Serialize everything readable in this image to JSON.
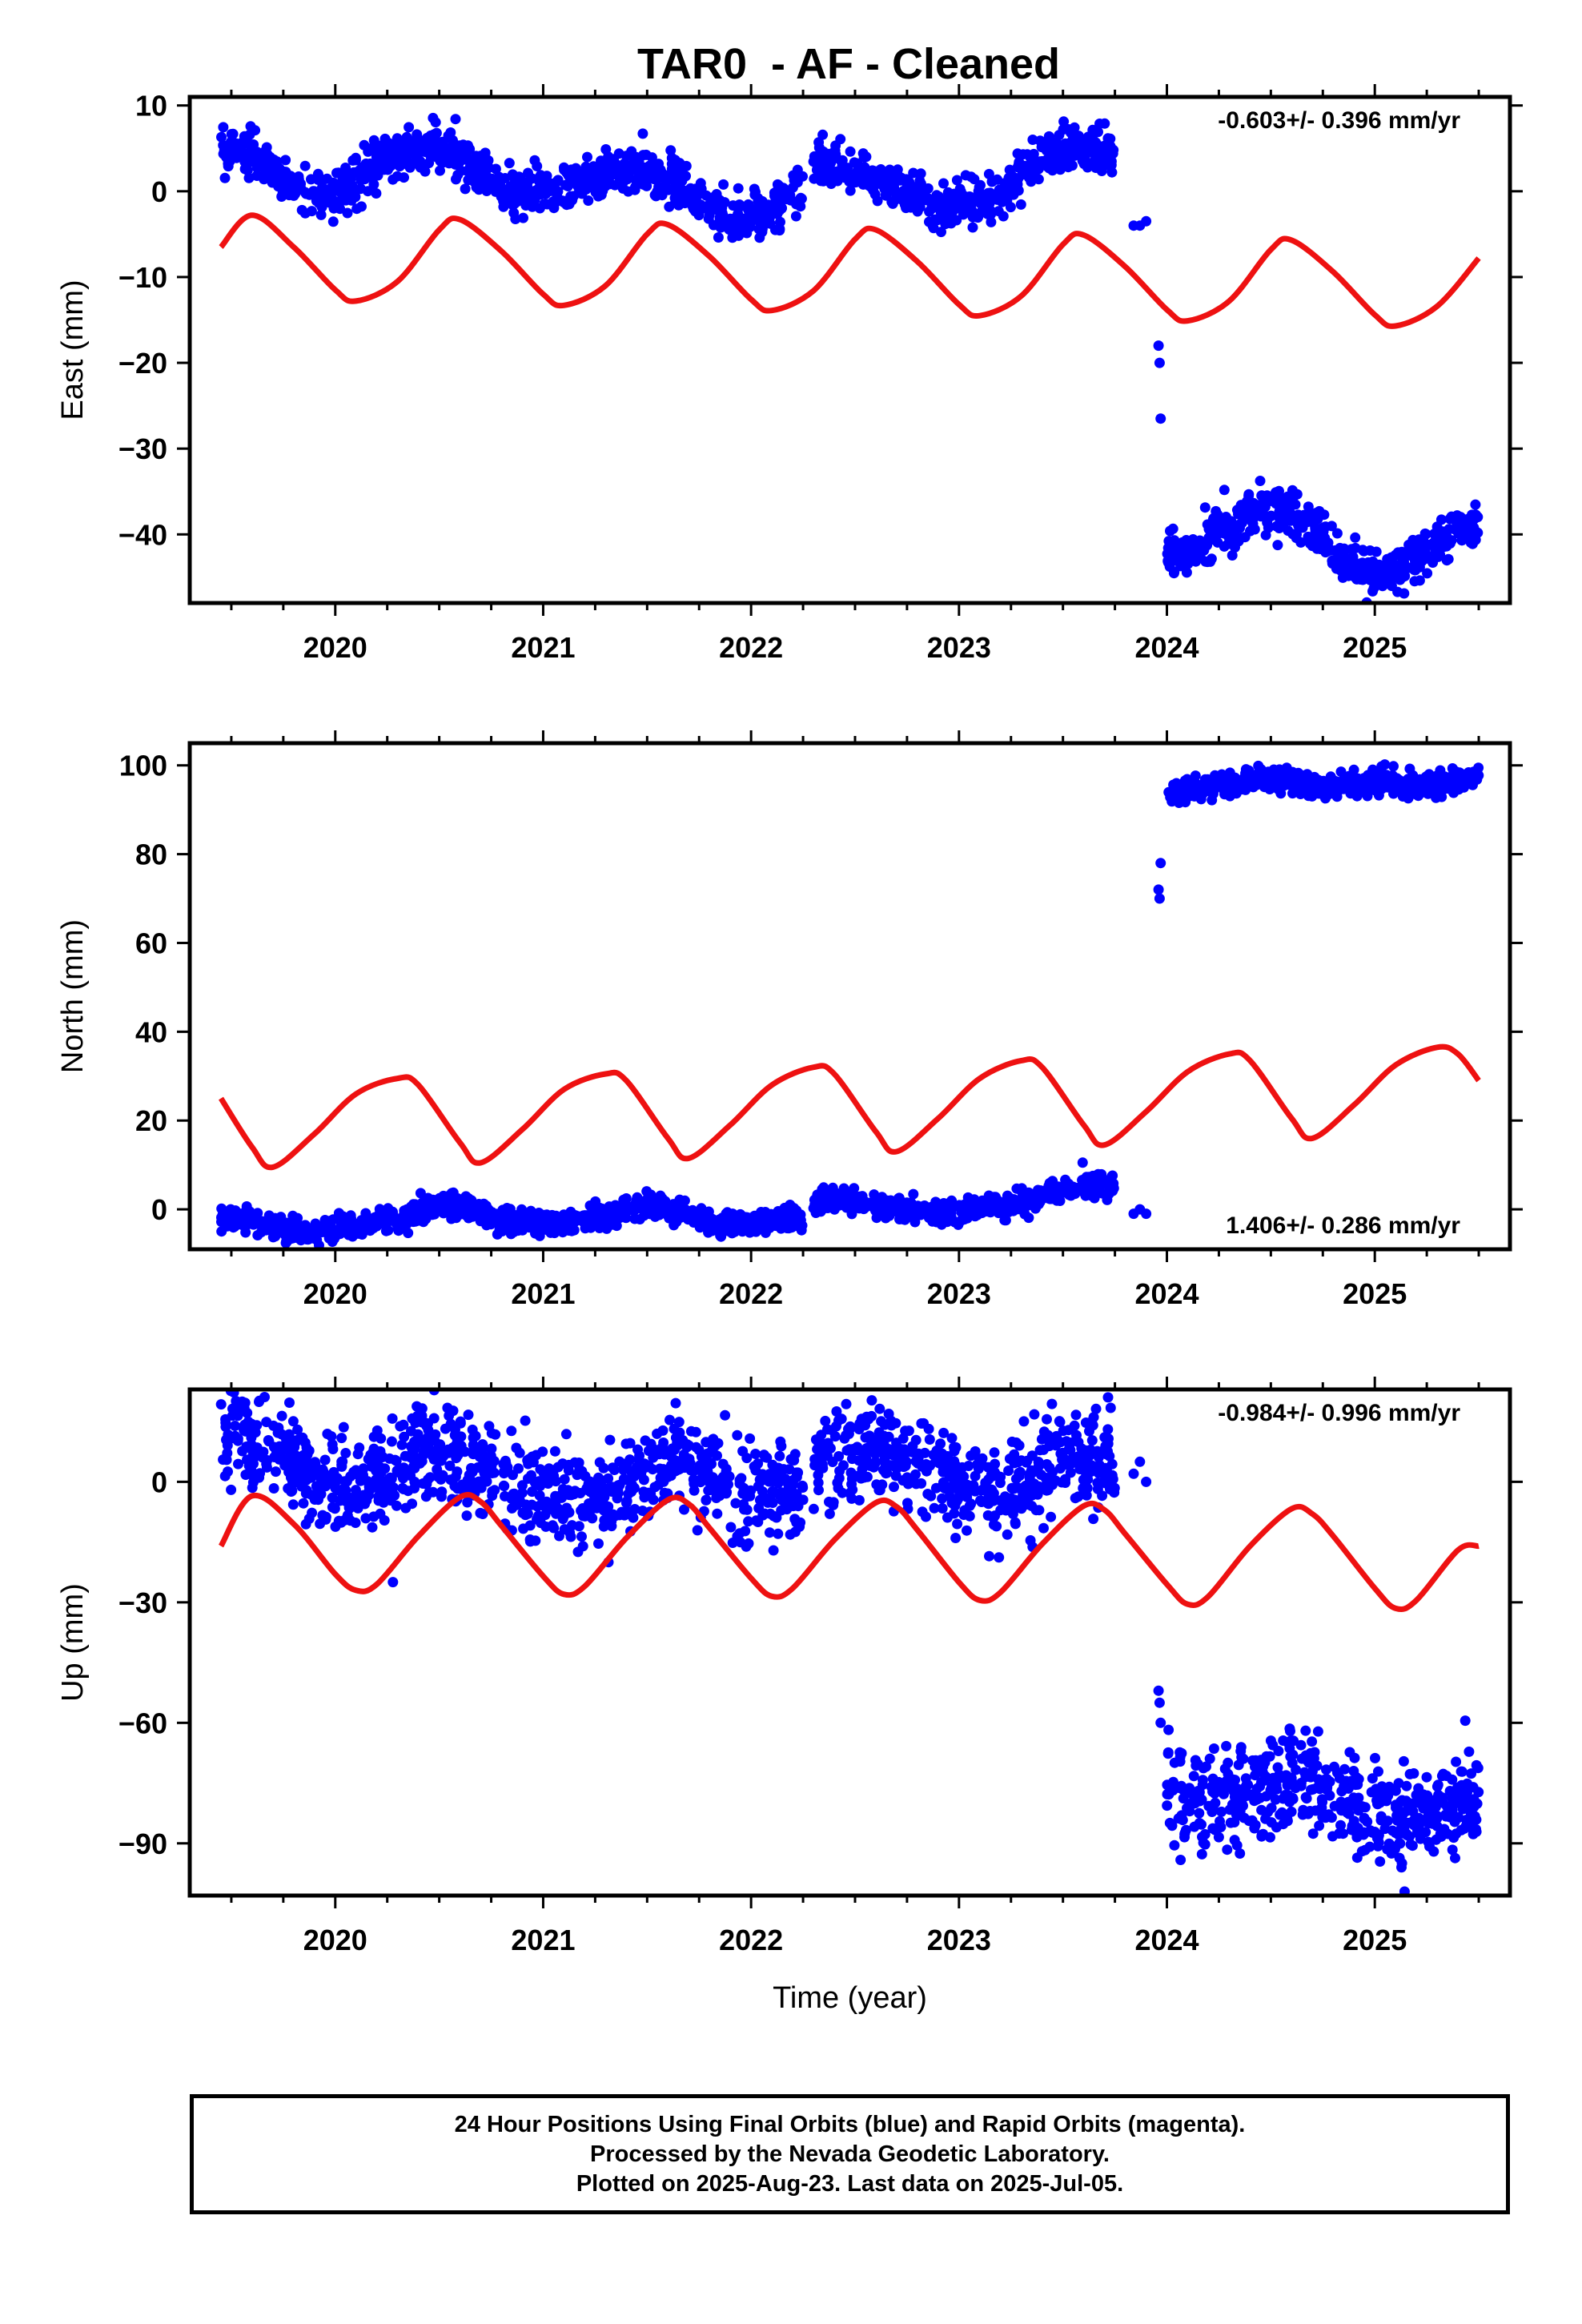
{
  "title": "TAR0  - AF - Cleaned",
  "footer": {
    "line1": "24 Hour Positions Using Final Orbits (blue) and Rapid Orbits (magenta).",
    "line2": "Processed by the Nevada Geodetic Laboratory.",
    "line3": "Plotted on 2025-Aug-23. Last data on 2025-Jul-05."
  },
  "colors": {
    "data_points": "#0000ff",
    "model_curve": "#ee1111",
    "frame": "#000000"
  },
  "chart_data": [
    {
      "type": "scatter",
      "ylabel": "East (mm)",
      "xlabel": "",
      "rate_text": "-0.603+/- 0.396 mm/yr",
      "rate_position": "top-right",
      "xlim": [
        2019.3,
        2025.65
      ],
      "ylim": [
        -48,
        11
      ],
      "x_ticks": [
        "2020",
        "2021",
        "2022",
        "2023",
        "2024",
        "2025"
      ],
      "y_ticks": [
        10,
        0,
        -10,
        -20,
        -30,
        -40
      ],
      "y_ticklabels": [
        "10",
        "0",
        "−10",
        "−20",
        "−30",
        "−40"
      ],
      "grid": false,
      "series": [
        {
          "kind": "points",
          "segments": [
            {
              "x": [
                2019.45,
                2019.55,
                2019.65,
                2019.75,
                2019.85,
                2019.95,
                2020.05,
                2020.15,
                2020.25,
                2020.35,
                2020.45,
                2020.55,
                2020.65,
                2020.75,
                2020.85,
                2020.95,
                2021.05,
                2021.15,
                2021.25,
                2021.35,
                2021.45,
                2021.55,
                2021.65,
                2021.75,
                2021.85,
                2021.95,
                2022.05,
                2022.15,
                2022.25
              ],
              "y": [
                5.0,
                4.5,
                3.5,
                1.5,
                0.0,
                -0.5,
                0.5,
                2.0,
                3.5,
                4.5,
                5.0,
                4.5,
                3.0,
                1.0,
                0.0,
                0.0,
                -0.5,
                0.5,
                1.5,
                2.0,
                3.0,
                2.5,
                1.0,
                -1.5,
                -3.0,
                -3.5,
                -3.0,
                -1.5,
                0.0
              ]
            },
            {
              "x": [
                2022.3,
                2022.4,
                2022.5,
                2022.6,
                2022.7,
                2022.8,
                2022.9,
                2023.0,
                2023.1,
                2023.2,
                2023.3,
                2023.4,
                2023.5,
                2023.6,
                2023.7,
                2023.75
              ],
              "y": [
                2.5,
                3.0,
                2.5,
                1.5,
                0.5,
                -1.0,
                -2.0,
                -1.5,
                -1.0,
                0.0,
                2.0,
                4.0,
                5.0,
                5.0,
                4.5,
                4.0
              ]
            },
            {
              "x": [
                2023.84,
                2023.87,
                2023.9
              ],
              "y": [
                -4.0,
                -4.0,
                -3.5
              ]
            },
            {
              "x": [
                2023.96,
                2023.965,
                2023.97
              ],
              "y": [
                -18.0,
                -20.0,
                -26.5
              ]
            },
            {
              "x": [
                2024.0,
                2024.1,
                2024.2,
                2024.3,
                2024.4,
                2024.5,
                2024.6,
                2024.7,
                2024.8,
                2024.9,
                2025.0,
                2025.1,
                2025.2,
                2025.3,
                2025.4,
                2025.5
              ],
              "y": [
                -42.0,
                -42.0,
                -41.0,
                -39.0,
                -37.5,
                -36.5,
                -37.5,
                -39.0,
                -42.0,
                -44.0,
                -44.5,
                -44.0,
                -43.0,
                -41.0,
                -39.5,
                -39.0
              ]
            }
          ]
        },
        {
          "kind": "model",
          "x": [
            2019.45,
            2019.6,
            2019.8,
            2020.0,
            2020.1,
            2020.3,
            2020.5,
            2020.6,
            2020.8,
            2021.0,
            2021.1,
            2021.3,
            2021.5,
            2021.6,
            2021.8,
            2022.0,
            2022.1,
            2022.3,
            2022.5,
            2022.6,
            2022.8,
            2023.0,
            2023.1,
            2023.3,
            2023.5,
            2023.6,
            2023.8,
            2024.0,
            2024.1,
            2024.3,
            2024.5,
            2024.6,
            2024.8,
            2025.0,
            2025.1,
            2025.3,
            2025.5
          ],
          "y": [
            -6.5,
            -2.8,
            -6.5,
            -11.5,
            -12.8,
            -10.5,
            -4.5,
            -3.3,
            -7.0,
            -12.0,
            -13.3,
            -11.0,
            -5.0,
            -3.9,
            -7.6,
            -12.6,
            -13.9,
            -11.6,
            -5.6,
            -4.5,
            -8.2,
            -13.2,
            -14.5,
            -12.2,
            -6.2,
            -5.1,
            -8.8,
            -13.8,
            -15.1,
            -12.8,
            -6.8,
            -5.7,
            -9.4,
            -14.4,
            -15.7,
            -13.4,
            -7.8
          ]
        }
      ]
    },
    {
      "type": "scatter",
      "ylabel": "North (mm)",
      "xlabel": "",
      "rate_text": "1.406+/- 0.286 mm/yr",
      "rate_position": "bottom-right",
      "xlim": [
        2019.3,
        2025.65
      ],
      "ylim": [
        -9,
        105
      ],
      "x_ticks": [
        "2020",
        "2021",
        "2022",
        "2023",
        "2024",
        "2025"
      ],
      "y_ticks": [
        100,
        80,
        60,
        40,
        20,
        0
      ],
      "y_ticklabels": [
        "100",
        "80",
        "60",
        "40",
        "20",
        "0"
      ],
      "grid": false,
      "series": [
        {
          "kind": "points",
          "segments": [
            {
              "x": [
                2019.45,
                2019.6,
                2019.75,
                2019.9,
                2020.05,
                2020.2,
                2020.35,
                2020.5,
                2020.65,
                2020.8,
                2020.95,
                2021.1,
                2021.25,
                2021.4,
                2021.55,
                2021.7,
                2021.85,
                2022.0,
                2022.15,
                2022.25
              ],
              "y": [
                -2.0,
                -3.0,
                -5.0,
                -5.0,
                -4.0,
                -3.0,
                -1.5,
                1.0,
                0.0,
                -3.0,
                -3.5,
                -3.0,
                -2.0,
                0.0,
                1.0,
                -1.0,
                -3.0,
                -3.0,
                -2.0,
                -2.0
              ]
            },
            {
              "x": [
                2022.3,
                2022.45,
                2022.6,
                2022.75,
                2022.9,
                2023.05,
                2023.2,
                2023.35,
                2023.5,
                2023.6,
                2023.75
              ],
              "y": [
                1.0,
                2.0,
                1.0,
                0.0,
                -1.0,
                0.0,
                1.0,
                2.0,
                4.0,
                5.0,
                6.0
              ]
            },
            {
              "x": [
                2023.84,
                2023.87,
                2023.9
              ],
              "y": [
                -1.0,
                0.0,
                -1.0
              ]
            },
            {
              "x": [
                2023.96,
                2023.965,
                2023.97
              ],
              "y": [
                72.0,
                70.0,
                78.0
              ]
            },
            {
              "x": [
                2024.0,
                2024.15,
                2024.3,
                2024.45,
                2024.6,
                2024.75,
                2024.9,
                2025.05,
                2025.2,
                2025.35,
                2025.5
              ],
              "y": [
                93.0,
                95.0,
                96.0,
                97.0,
                97.0,
                95.0,
                96.0,
                97.0,
                95.0,
                96.0,
                97.0
              ]
            }
          ]
        },
        {
          "kind": "model",
          "x": [
            2019.45,
            2019.6,
            2019.7,
            2019.9,
            2020.1,
            2020.3,
            2020.4,
            2020.6,
            2020.7,
            2020.9,
            2021.1,
            2021.3,
            2021.4,
            2021.6,
            2021.7,
            2021.9,
            2022.1,
            2022.3,
            2022.4,
            2022.6,
            2022.7,
            2022.9,
            2023.1,
            2023.3,
            2023.4,
            2023.6,
            2023.7,
            2023.9,
            2024.1,
            2024.3,
            2024.4,
            2024.6,
            2024.7,
            2024.9,
            2025.1,
            2025.3,
            2025.4,
            2025.5
          ],
          "y": [
            25.0,
            14.0,
            9.5,
            17.0,
            26.0,
            29.5,
            28.0,
            15.0,
            10.5,
            18.0,
            27.0,
            30.5,
            29.0,
            16.0,
            11.5,
            19.0,
            28.0,
            32.0,
            30.5,
            17.5,
            13.0,
            20.5,
            29.5,
            33.5,
            32.0,
            19.0,
            14.5,
            22.0,
            31.0,
            35.0,
            33.5,
            20.5,
            16.0,
            23.5,
            32.5,
            36.5,
            35.0,
            29.0
          ]
        }
      ]
    },
    {
      "type": "scatter",
      "ylabel": "Up (mm)",
      "xlabel": "Time (year)",
      "rate_text": "-0.984+/- 0.996 mm/yr",
      "rate_position": "top-right",
      "xlim": [
        2019.3,
        2025.65
      ],
      "ylim": [
        -103,
        23
      ],
      "x_ticks": [
        "2020",
        "2021",
        "2022",
        "2023",
        "2024",
        "2025"
      ],
      "y_ticks": [
        0,
        -30,
        -60,
        -90
      ],
      "y_ticklabels": [
        "0",
        "−30",
        "−60",
        "−90"
      ],
      "grid": false,
      "series": [
        {
          "kind": "points",
          "segments": [
            {
              "x": [
                2019.45,
                2019.55,
                2019.65,
                2019.75,
                2019.85,
                2019.95,
                2020.05,
                2020.15,
                2020.25,
                2020.35,
                2020.45,
                2020.55,
                2020.65,
                2020.75,
                2020.85,
                2020.95,
                2021.05,
                2021.15,
                2021.25,
                2021.35,
                2021.45,
                2021.55,
                2021.65,
                2021.75,
                2021.85,
                2021.95,
                2022.05,
                2022.15,
                2022.25
              ],
              "y": [
                10.0,
                12.0,
                9.0,
                7.0,
                3.0,
                0.0,
                -2.0,
                0.0,
                3.0,
                6.0,
                8.0,
                7.0,
                5.0,
                2.0,
                0.0,
                -2.0,
                -3.0,
                -5.0,
                -6.0,
                -3.0,
                0.0,
                4.0,
                6.0,
                3.0,
                0.0,
                -2.0,
                -3.0,
                -3.0,
                -2.0
              ]
            },
            {
              "x": [
                2022.3,
                2022.4,
                2022.5,
                2022.6,
                2022.7,
                2022.8,
                2022.9,
                2023.0,
                2023.1,
                2023.2,
                2023.3,
                2023.4,
                2023.5,
                2023.6,
                2023.7,
                2023.75
              ],
              "y": [
                5.0,
                7.0,
                8.0,
                8.0,
                6.0,
                4.0,
                2.0,
                0.0,
                -2.0,
                -3.0,
                0.0,
                3.0,
                6.0,
                7.0,
                5.0,
                4.0
              ]
            },
            {
              "x": [
                2023.84,
                2023.87,
                2023.9
              ],
              "y": [
                2.0,
                5.0,
                0.0
              ]
            },
            {
              "x": [
                2023.96,
                2023.965,
                2023.97
              ],
              "y": [
                -52.0,
                -55.0,
                -60.0
              ]
            },
            {
              "x": [
                2024.0,
                2024.1,
                2024.2,
                2024.3,
                2024.4,
                2024.5,
                2024.6,
                2024.7,
                2024.8,
                2024.9,
                2025.0,
                2025.1,
                2025.2,
                2025.3,
                2025.4,
                2025.5
              ],
              "y": [
                -76.0,
                -80.0,
                -81.0,
                -80.0,
                -78.0,
                -75.0,
                -72.0,
                -74.0,
                -78.0,
                -81.0,
                -82.0,
                -84.0,
                -83.0,
                -82.0,
                -80.0,
                -78.0
              ]
            }
          ]
        },
        {
          "kind": "model",
          "x": [
            2019.45,
            2019.6,
            2019.8,
            2020.0,
            2020.1,
            2020.2,
            2020.4,
            2020.6,
            2020.7,
            2020.8,
            2021.0,
            2021.1,
            2021.2,
            2021.4,
            2021.6,
            2021.7,
            2021.8,
            2022.0,
            2022.1,
            2022.2,
            2022.4,
            2022.6,
            2022.7,
            2022.8,
            2023.0,
            2023.1,
            2023.2,
            2023.4,
            2023.6,
            2023.7,
            2023.8,
            2024.0,
            2024.1,
            2024.2,
            2024.4,
            2024.6,
            2024.7,
            2024.8,
            2025.0,
            2025.1,
            2025.2,
            2025.4,
            2025.5
          ],
          "y": [
            -16.0,
            -3.5,
            -10.5,
            -23.0,
            -27.0,
            -25.5,
            -13.5,
            -3.8,
            -5.0,
            -11.0,
            -23.5,
            -28.0,
            -26.0,
            -14.0,
            -4.5,
            -5.5,
            -11.5,
            -24.0,
            -28.5,
            -26.5,
            -14.5,
            -5.2,
            -6.2,
            -12.0,
            -25.0,
            -29.5,
            -27.5,
            -15.5,
            -6.0,
            -7.0,
            -13.0,
            -25.5,
            -30.5,
            -28.5,
            -16.0,
            -6.7,
            -8.0,
            -13.5,
            -26.5,
            -31.5,
            -29.5,
            -17.0,
            -16.0
          ]
        }
      ]
    }
  ]
}
